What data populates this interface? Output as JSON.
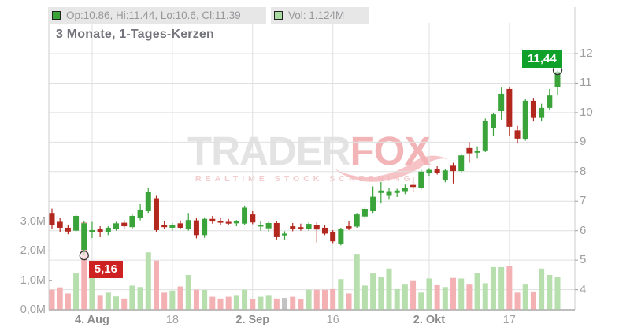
{
  "legend": {
    "ohlc_label": "Op:10.86, Hi:11.44, Lo:10.6, Cl:11.39",
    "vol_label": "Vol: 1.124M"
  },
  "title": "3 Monate, 1-Tages-Kerzen",
  "watermark": {
    "brand_gray": "TRADER",
    "brand_red": "FOX",
    "tagline": "REALTIME STOCK SCREENING"
  },
  "annotations": {
    "low_label": "5,16",
    "high_label": "11,44"
  },
  "colors": {
    "candle_up": "#3aa33a",
    "candle_down": "#b2281e",
    "vol_up": "#b6dfad",
    "vol_down": "#f3b1b4",
    "vol_neutral": "#c2c2c2",
    "badge_low_bg": "#ce2121",
    "badge_high_bg": "#10a12b",
    "legend_swatch_ohlc": "#3aa33a",
    "legend_swatch_vol": "#a8d9a0",
    "grid": "#e0e0e0",
    "border": "#cccccc",
    "axis": "#a8a8a8",
    "marker_ring": "#333333"
  },
  "chart_data": {
    "type": "candlestick+volume",
    "title": "3 Monate, 1-Tages-Kerzen",
    "price_axis": {
      "side": "right",
      "ticks": [
        12,
        11,
        10,
        9,
        8,
        7,
        6,
        5,
        4
      ],
      "ylim": [
        3.6,
        12.6
      ]
    },
    "volume_axis": {
      "side": "left",
      "unit": "M",
      "max": 3.0,
      "ticks": [
        {
          "label": "3,0M",
          "value": 3.0
        },
        {
          "label": "2,0M",
          "value": 2.0
        },
        {
          "label": "1,0M",
          "value": 1.0
        },
        {
          "label": "0,0M",
          "value": 0.0
        }
      ]
    },
    "x_ticks": [
      {
        "label": "4. Aug",
        "index": 5,
        "bold": true
      },
      {
        "label": "18",
        "index": 15,
        "bold": false
      },
      {
        "label": "2. Sep",
        "index": 25,
        "bold": true
      },
      {
        "label": "16",
        "index": 35,
        "bold": false
      },
      {
        "label": "2. Okt",
        "index": 47,
        "bold": true
      },
      {
        "label": "17",
        "index": 57,
        "bold": false
      }
    ],
    "markers": [
      {
        "candle": 4,
        "at": "low",
        "price": 5.16
      },
      {
        "candle": 63,
        "at": "high",
        "price": 11.44
      }
    ],
    "candles": [
      {
        "o": 6.6,
        "h": 6.75,
        "l": 6.05,
        "c": 6.2,
        "v": 0.68
      },
      {
        "o": 6.3,
        "h": 6.42,
        "l": 5.95,
        "c": 6.1,
        "v": 0.76
      },
      {
        "o": 6.1,
        "h": 6.2,
        "l": 5.88,
        "c": 5.97,
        "v": 0.55
      },
      {
        "o": 6.0,
        "h": 6.55,
        "l": 5.95,
        "c": 6.5,
        "v": 1.23
      },
      {
        "o": 5.35,
        "h": 6.32,
        "l": 5.16,
        "c": 6.25,
        "v": 2.98,
        "vc": "down"
      },
      {
        "o": 5.95,
        "h": 6.3,
        "l": 5.75,
        "c": 6.02,
        "v": 1.23
      },
      {
        "o": 6.05,
        "h": 6.15,
        "l": 5.78,
        "c": 5.94,
        "v": 0.5
      },
      {
        "o": 5.95,
        "h": 6.15,
        "l": 5.85,
        "c": 6.1,
        "v": 0.58
      },
      {
        "o": 6.05,
        "h": 6.3,
        "l": 6.0,
        "c": 6.25,
        "v": 0.45
      },
      {
        "o": 6.27,
        "h": 6.36,
        "l": 6.05,
        "c": 6.15,
        "v": 0.38
      },
      {
        "o": 6.12,
        "h": 6.55,
        "l": 6.06,
        "c": 6.5,
        "v": 0.82
      },
      {
        "o": 6.42,
        "h": 6.9,
        "l": 6.35,
        "c": 6.7,
        "v": 0.77
      },
      {
        "o": 6.66,
        "h": 7.45,
        "l": 6.6,
        "c": 7.3,
        "v": 1.95
      },
      {
        "o": 7.1,
        "h": 7.18,
        "l": 5.95,
        "c": 6.02,
        "v": 1.67
      },
      {
        "o": 6.2,
        "h": 6.32,
        "l": 6.05,
        "c": 6.12,
        "v": 0.58
      },
      {
        "o": 6.1,
        "h": 6.26,
        "l": 6.0,
        "c": 6.2,
        "v": 0.65
      },
      {
        "o": 6.25,
        "h": 6.35,
        "l": 6.05,
        "c": 6.1,
        "v": 0.79
      },
      {
        "o": 6.05,
        "h": 6.6,
        "l": 6.0,
        "c": 6.36,
        "v": 1.18
      },
      {
        "o": 6.35,
        "h": 6.44,
        "l": 5.74,
        "c": 5.85,
        "v": 0.68
      },
      {
        "o": 5.85,
        "h": 6.45,
        "l": 5.76,
        "c": 6.4,
        "v": 0.67
      },
      {
        "o": 6.4,
        "h": 6.5,
        "l": 6.24,
        "c": 6.31,
        "v": 0.44
      },
      {
        "o": 6.34,
        "h": 6.45,
        "l": 6.2,
        "c": 6.27,
        "v": 0.38
      },
      {
        "o": 6.3,
        "h": 6.4,
        "l": 6.18,
        "c": 6.24,
        "v": 0.44
      },
      {
        "o": 6.25,
        "h": 6.36,
        "l": 6.15,
        "c": 6.32,
        "v": 0.5
      },
      {
        "o": 6.24,
        "h": 6.85,
        "l": 6.2,
        "c": 6.78,
        "v": 0.68
      },
      {
        "o": 6.55,
        "h": 6.66,
        "l": 6.22,
        "c": 6.28,
        "v": 0.35
      },
      {
        "o": 6.14,
        "h": 6.32,
        "l": 6.0,
        "c": 6.2,
        "v": 0.44
      },
      {
        "o": 6.08,
        "h": 6.3,
        "l": 5.95,
        "c": 6.26,
        "v": 0.5
      },
      {
        "o": 6.26,
        "h": 6.32,
        "l": 5.7,
        "c": 5.78,
        "v": 0.38
      },
      {
        "o": 5.84,
        "h": 5.98,
        "l": 5.7,
        "c": 5.9,
        "v": 0.4,
        "vc": "neutral"
      },
      {
        "o": 6.15,
        "h": 6.26,
        "l": 5.98,
        "c": 6.05,
        "v": 0.44
      },
      {
        "o": 6.12,
        "h": 6.24,
        "l": 6.0,
        "c": 6.06,
        "v": 0.35
      },
      {
        "o": 6.06,
        "h": 6.28,
        "l": 6.0,
        "c": 6.23,
        "v": 0.68
      },
      {
        "o": 6.18,
        "h": 6.28,
        "l": 5.6,
        "c": 6.04,
        "v": 0.68
      },
      {
        "o": 6.1,
        "h": 6.2,
        "l": 5.85,
        "c": 5.9,
        "v": 0.68
      },
      {
        "o": 5.95,
        "h": 6.02,
        "l": 5.58,
        "c": 5.64,
        "v": 0.7
      },
      {
        "o": 5.55,
        "h": 6.1,
        "l": 5.5,
        "c": 6.05,
        "v": 1.04
      },
      {
        "o": 6.15,
        "h": 6.32,
        "l": 6.02,
        "c": 6.08,
        "v": 0.55
      },
      {
        "o": 6.14,
        "h": 6.6,
        "l": 6.1,
        "c": 6.55,
        "v": 1.9
      },
      {
        "o": 6.48,
        "h": 6.8,
        "l": 6.4,
        "c": 6.74,
        "v": 0.82
      },
      {
        "o": 6.66,
        "h": 7.5,
        "l": 6.6,
        "c": 7.15,
        "v": 1.23
      },
      {
        "o": 7.28,
        "h": 7.65,
        "l": 6.92,
        "c": 7.36,
        "v": 1.1
      },
      {
        "o": 7.18,
        "h": 7.45,
        "l": 7.05,
        "c": 7.34,
        "v": 1.4
      },
      {
        "o": 7.28,
        "h": 7.42,
        "l": 7.14,
        "c": 7.36,
        "v": 0.7
      },
      {
        "o": 7.34,
        "h": 7.56,
        "l": 7.24,
        "c": 7.46,
        "v": 0.88
      },
      {
        "o": 7.55,
        "h": 7.8,
        "l": 7.3,
        "c": 7.48,
        "v": 1.0
      },
      {
        "o": 7.45,
        "h": 8.06,
        "l": 7.4,
        "c": 8.0,
        "v": 0.58
      },
      {
        "o": 7.94,
        "h": 8.12,
        "l": 7.86,
        "c": 8.06,
        "v": 1.06
      },
      {
        "o": 8.1,
        "h": 8.18,
        "l": 7.9,
        "c": 7.96,
        "v": 0.86
      },
      {
        "o": 7.7,
        "h": 8.08,
        "l": 7.64,
        "c": 8.04,
        "v": 0.77
      },
      {
        "o": 8.2,
        "h": 8.3,
        "l": 7.6,
        "c": 8.02,
        "v": 1.08
      },
      {
        "o": 8.02,
        "h": 8.6,
        "l": 7.95,
        "c": 8.55,
        "v": 1.06
      },
      {
        "o": 8.8,
        "h": 9.0,
        "l": 8.3,
        "c": 8.62,
        "v": 0.88
      },
      {
        "o": 8.64,
        "h": 8.86,
        "l": 8.44,
        "c": 8.7,
        "v": 1.25
      },
      {
        "o": 8.72,
        "h": 9.8,
        "l": 8.66,
        "c": 9.72,
        "v": 0.9
      },
      {
        "o": 9.48,
        "h": 10.0,
        "l": 9.2,
        "c": 9.94,
        "v": 1.45
      },
      {
        "o": 10.05,
        "h": 10.85,
        "l": 9.76,
        "c": 10.64,
        "v": 1.45
      },
      {
        "o": 10.8,
        "h": 10.85,
        "l": 9.2,
        "c": 9.52,
        "v": 1.5
      },
      {
        "o": 9.4,
        "h": 9.55,
        "l": 8.95,
        "c": 9.12,
        "v": 0.58
      },
      {
        "o": 9.1,
        "h": 10.45,
        "l": 9.05,
        "c": 10.4,
        "v": 0.88
      },
      {
        "o": 10.4,
        "h": 10.5,
        "l": 9.7,
        "c": 9.82,
        "v": 0.62
      },
      {
        "o": 9.82,
        "h": 10.3,
        "l": 9.7,
        "c": 10.16,
        "v": 1.4
      },
      {
        "o": 10.16,
        "h": 10.8,
        "l": 10.1,
        "c": 10.58,
        "v": 1.18
      },
      {
        "o": 10.86,
        "h": 11.44,
        "l": 10.6,
        "c": 11.39,
        "v": 1.12
      }
    ]
  }
}
